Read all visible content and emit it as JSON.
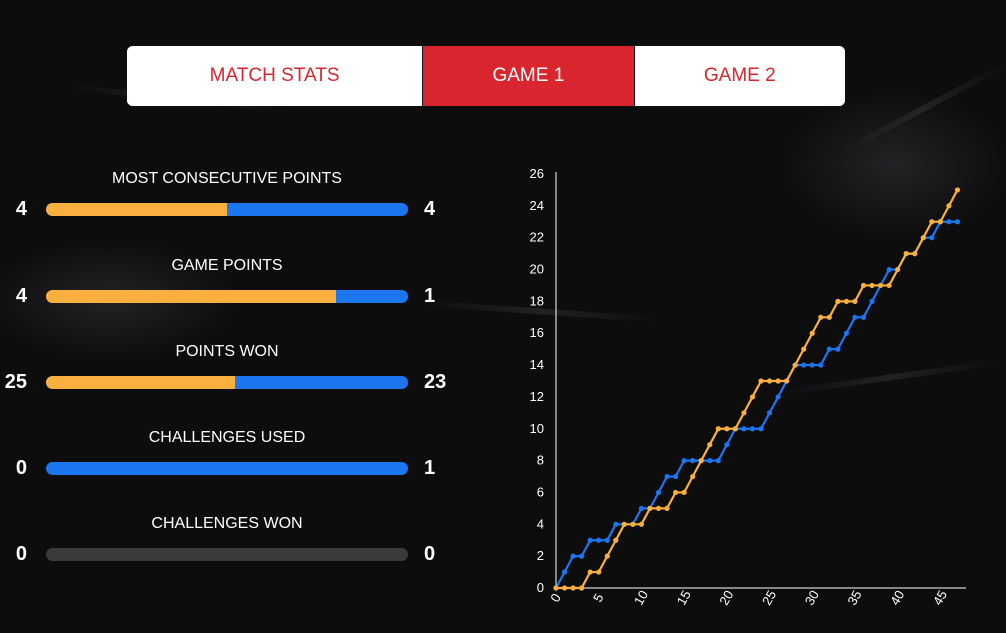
{
  "tabs": [
    {
      "label": "MATCH STATS",
      "active": false
    },
    {
      "label": "GAME 1",
      "active": true
    },
    {
      "label": "GAME 2",
      "active": false
    }
  ],
  "colors": {
    "team_a": "#f9b03e",
    "team_b": "#1c76f0",
    "accent": "#d9262e",
    "empty": "#3a3a3c"
  },
  "stats": [
    {
      "label": "MOST CONSECUTIVE POINTS",
      "left": "4",
      "right": "4",
      "a": 4,
      "b": 4
    },
    {
      "label": "GAME POINTS",
      "left": "4",
      "right": "1",
      "a": 4,
      "b": 1
    },
    {
      "label": "POINTS WON",
      "left": "25",
      "right": "23",
      "a": 25,
      "b": 23
    },
    {
      "label": "CHALLENGES USED",
      "left": "0",
      "right": "1",
      "a": 0,
      "b": 1
    },
    {
      "label": "CHALLENGES WON",
      "left": "0",
      "right": "0",
      "a": 0,
      "b": 0
    }
  ],
  "chart_data": {
    "type": "line",
    "title": "",
    "xlabel": "",
    "ylabel": "",
    "xlim": [
      0,
      48
    ],
    "ylim": [
      0,
      26
    ],
    "x_ticks": [
      "0",
      "5",
      "10",
      "15",
      "20",
      "25",
      "30",
      "35",
      "40",
      "45"
    ],
    "y_ticks": [
      "0",
      "2",
      "4",
      "6",
      "8",
      "10",
      "12",
      "14",
      "16",
      "18",
      "20",
      "22",
      "24",
      "26"
    ],
    "grid": false,
    "legend": "none",
    "series": [
      {
        "color": "#1c76f0",
        "values": [
          0,
          1,
          2,
          2,
          3,
          3,
          3,
          4,
          4,
          4,
          5,
          5,
          6,
          7,
          7,
          8,
          8,
          8,
          8,
          8,
          9,
          10,
          10,
          10,
          10,
          11,
          12,
          13,
          14,
          14,
          14,
          14,
          15,
          15,
          16,
          17,
          17,
          18,
          19,
          20,
          20,
          21,
          21,
          22,
          22,
          23,
          23,
          23
        ]
      },
      {
        "color": "#f9b03e",
        "values": [
          0,
          0,
          0,
          0,
          1,
          1,
          2,
          3,
          4,
          4,
          4,
          5,
          5,
          5,
          6,
          6,
          7,
          8,
          9,
          10,
          10,
          10,
          11,
          12,
          13,
          13,
          13,
          13,
          14,
          15,
          16,
          17,
          17,
          18,
          18,
          18,
          19,
          19,
          19,
          19,
          20,
          21,
          21,
          22,
          23,
          23,
          24,
          25
        ]
      }
    ]
  }
}
